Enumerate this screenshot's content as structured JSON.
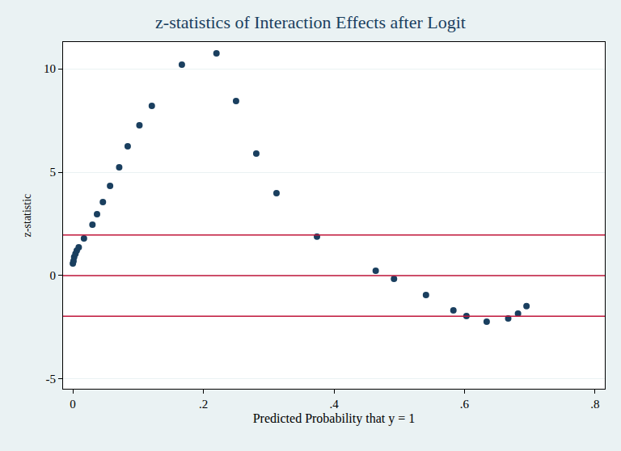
{
  "chart_data": {
    "type": "scatter",
    "title": "z-statistics of Interaction Effects after Logit",
    "x_label": "Predicted Probability that y = 1",
    "y_label": "z-statistic",
    "x": [
      0.0,
      0.001,
      0.002,
      0.004,
      0.006,
      0.009,
      0.017,
      0.03,
      0.037,
      0.046,
      0.057,
      0.071,
      0.084,
      0.102,
      0.121,
      0.167,
      0.22,
      0.25,
      0.281,
      0.312,
      0.374,
      0.464,
      0.492,
      0.541,
      0.583,
      0.603,
      0.634,
      0.667,
      0.682,
      0.695
    ],
    "values": [
      0.59,
      0.7,
      0.9,
      1.05,
      1.21,
      1.37,
      1.8,
      2.46,
      2.97,
      3.55,
      4.34,
      5.23,
      6.25,
      7.27,
      8.2,
      10.2,
      10.74,
      8.44,
      5.9,
      3.98,
      1.88,
      0.23,
      -0.16,
      -0.94,
      -1.68,
      -1.95,
      -2.23,
      -2.07,
      -1.84,
      -1.48
    ],
    "color": "#1a3f5f",
    "marker": "circle",
    "xlim": [
      -0.015,
      0.815
    ],
    "ylim": [
      -5.47,
      11.29
    ],
    "xticks": [
      0,
      {
        "value": 0.2,
        "label": ".2"
      },
      {
        "value": 0.4,
        "label": ".4"
      },
      {
        "value": 0.6,
        "label": ".6"
      },
      {
        "value": 0.8,
        "label": ".8"
      }
    ],
    "yticks": [
      -5,
      0,
      5,
      10
    ],
    "grid": true,
    "reference_lines": {
      "y": [
        1.96,
        0,
        -1.96
      ],
      "color": "#c0163a"
    }
  }
}
